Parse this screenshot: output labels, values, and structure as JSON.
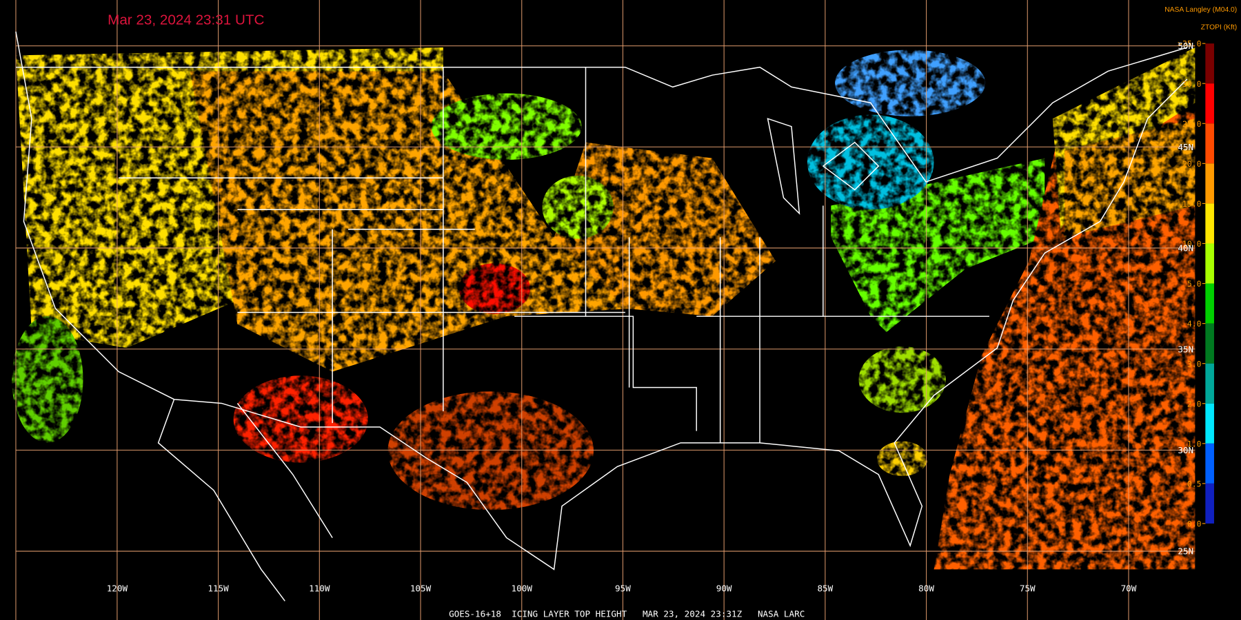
{
  "header": {
    "timestamp": "Mar 23, 2024 23:31 UTC",
    "source": "NASA Langley (M04.0)",
    "units": "ZTOPI (Kft)"
  },
  "map": {
    "longitudes": [
      "120W",
      "115W",
      "110W",
      "105W",
      "100W",
      "95W",
      "90W",
      "85W",
      "80W",
      "75W",
      "70W"
    ],
    "latitudes": [
      "50N",
      "45N",
      "40N",
      "35N",
      "30N",
      "25N"
    ]
  },
  "legend": {
    "labels": [
      ">35.0",
      "30.0",
      "25.0",
      "20.0",
      "15.0",
      "10.0",
      "5.0",
      "4.0",
      "3.0",
      "2.0",
      "1.0",
      "0.5",
      "0.0"
    ],
    "colors": [
      "#7a0000",
      "#ff0000",
      "#ff4a00",
      "#ff9a00",
      "#ffe600",
      "#a8ff00",
      "#00d000",
      "#007a20",
      "#00a89a",
      "#00e8ff",
      "#0060ff",
      "#1020c0",
      "#8040e0"
    ]
  },
  "footer": "GOES-16+18  ICING LAYER TOP HEIGHT   MAR 23, 2024 23:31Z   NASA LARC"
}
